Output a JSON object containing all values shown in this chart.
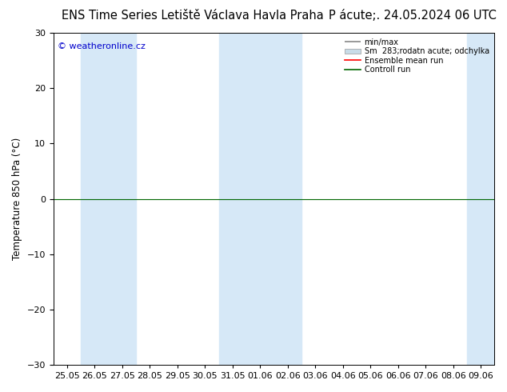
{
  "title_left": "ENS Time Series Letiště Václava Havla Praha",
  "title_right": "P ácute;. 24.05.2024 06 UTC",
  "ylabel": "Temperature 850 hPa (°C)",
  "ylim": [
    -30,
    30
  ],
  "yticks": [
    -30,
    -20,
    -10,
    0,
    10,
    20,
    30
  ],
  "x_labels": [
    "25.05",
    "26.05",
    "27.05",
    "28.05",
    "29.05",
    "30.05",
    "31.05",
    "01.06",
    "02.06",
    "03.06",
    "04.06",
    "05.06",
    "06.06",
    "07.06",
    "08.06",
    "09.06"
  ],
  "shaded_indices": [
    1,
    2,
    6,
    7,
    8,
    15
  ],
  "shade_color": "#d6e8f7",
  "bg_color": "#ffffff",
  "zero_line_color": "#006600",
  "ensemble_mean_color": "#ff0000",
  "control_run_color": "#006600",
  "minmax_color": "#888888",
  "spread_color": "#c8dce8",
  "copyright_text": "© weatheronline.cz",
  "copyright_color": "#0000cc",
  "legend_labels": [
    "min/max",
    "Sm  283;rodatn acute; odchylka",
    "Ensemble mean run",
    "Controll run"
  ],
  "title_fontsize": 10.5,
  "axis_fontsize": 8.5,
  "tick_fontsize": 8
}
